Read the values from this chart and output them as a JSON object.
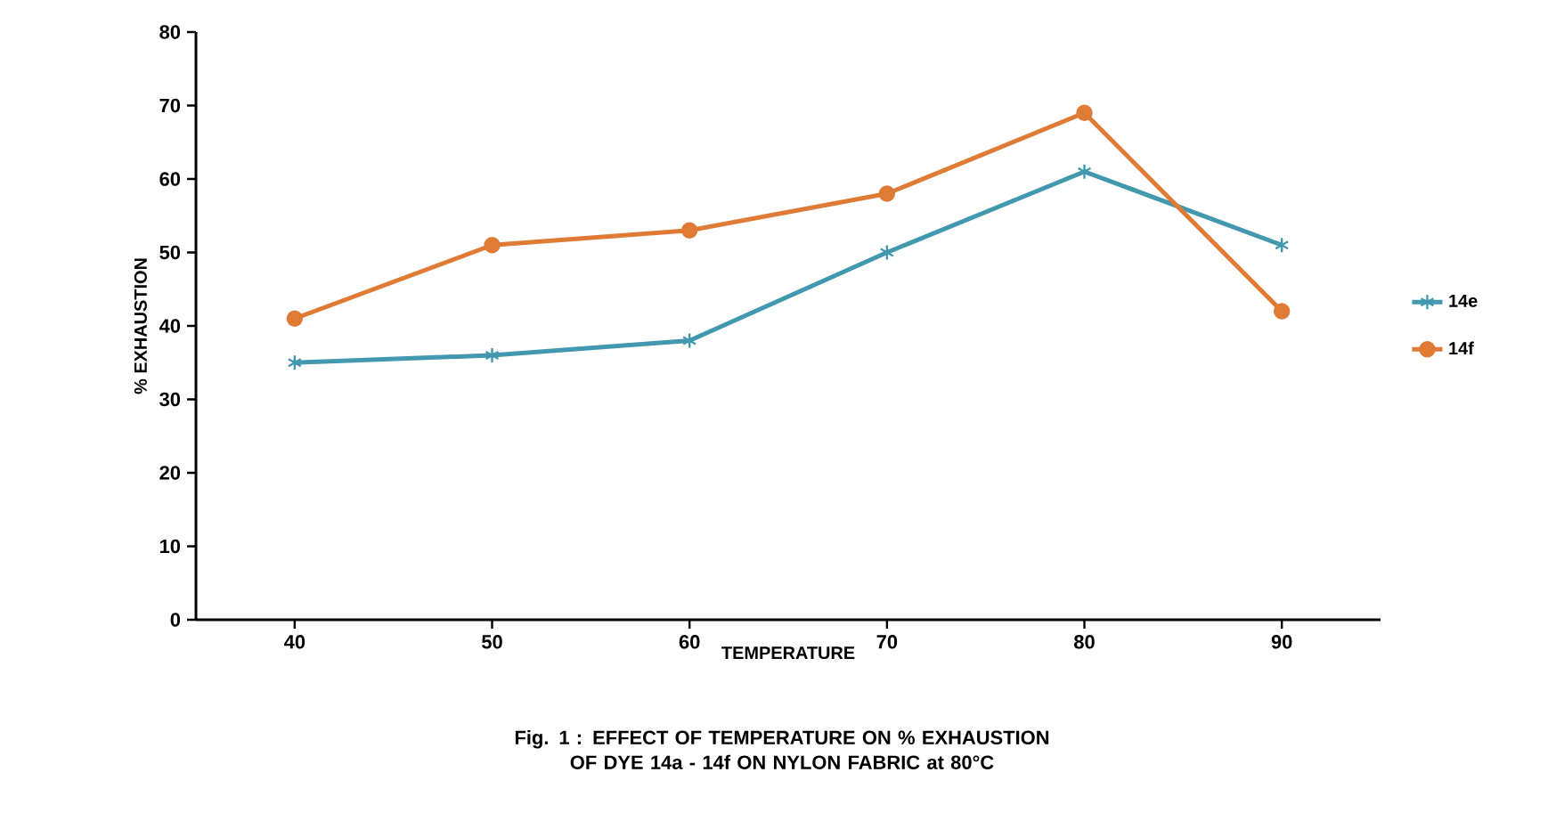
{
  "chart_data": {
    "type": "line",
    "xlabel": "TEMPERATURE",
    "ylabel": "% EXHAUSTION",
    "categories": [
      "40",
      "50",
      "60",
      "70",
      "80",
      "90"
    ],
    "series": [
      {
        "name": "14e",
        "color": "#4198af",
        "marker": "cross",
        "values": [
          35,
          36,
          38,
          50,
          61,
          51
        ]
      },
      {
        "name": "14f",
        "color": "#e07b35",
        "marker": "circle",
        "values": [
          41,
          51,
          53,
          58,
          69,
          42
        ]
      }
    ],
    "ylim": [
      0,
      80
    ],
    "yticks": [
      0,
      10,
      20,
      30,
      40,
      50,
      60,
      70,
      80
    ],
    "grid": false,
    "legend": "right",
    "line_style": "solid",
    "annotations": [
      "Fig. 1 : EFFECT OF TEMPERATURE  ON % EXHAUSTION OF DYE 14a - 14f ON NYLON FABRIC at 80°C"
    ]
  }
}
